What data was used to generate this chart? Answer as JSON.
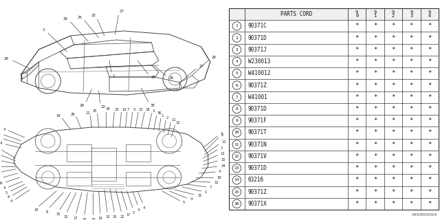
{
  "background_color": "#f5f5f0",
  "table": {
    "rows": [
      [
        "1",
        "90371C"
      ],
      [
        "2",
        "90371D"
      ],
      [
        "3",
        "90371J"
      ],
      [
        "4",
        "W230013"
      ],
      [
        "5",
        "W410012"
      ],
      [
        "6",
        "90371Z"
      ],
      [
        "7",
        "W41001"
      ],
      [
        "8",
        "90371D"
      ],
      [
        "9",
        "90371F"
      ],
      [
        "10",
        "90371T"
      ],
      [
        "11",
        "90371N"
      ],
      [
        "12",
        "90371V"
      ],
      [
        "13",
        "90371D"
      ],
      [
        "14",
        "63216"
      ],
      [
        "15",
        "90371Z"
      ],
      [
        "16",
        "90371X"
      ]
    ]
  },
  "footer_text": "A900B00069",
  "line_color": "#333333",
  "text_color": "#111111"
}
